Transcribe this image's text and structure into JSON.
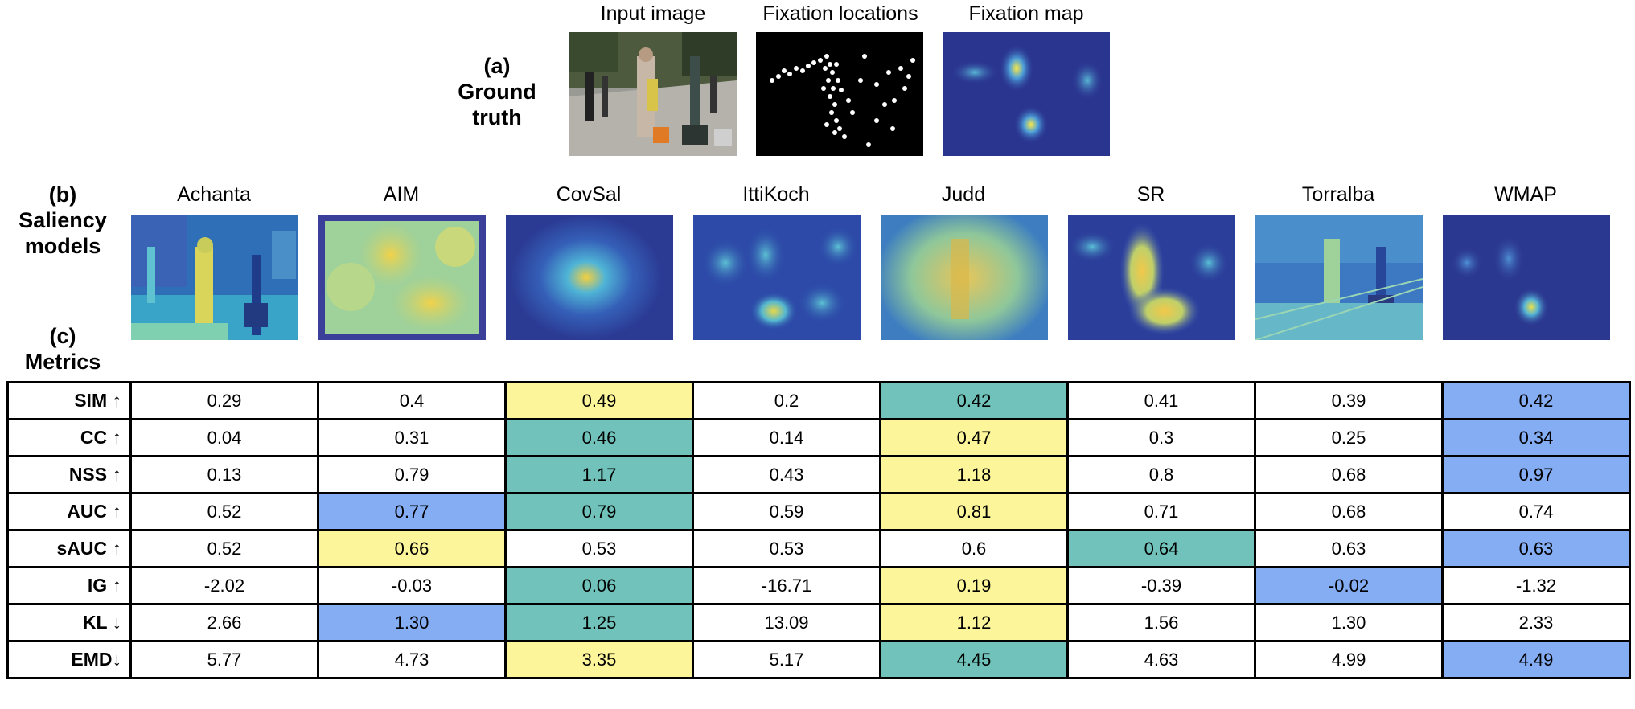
{
  "ground_truth": {
    "label_letter": "(a)",
    "label_line1": "Ground",
    "label_line2": "truth",
    "captions": [
      "Input image",
      "Fixation locations",
      "Fixation map"
    ]
  },
  "saliency_models": {
    "label_letter": "(b)",
    "label_line1": "Saliency",
    "label_line2": "models",
    "names": [
      "Achanta",
      "AIM",
      "CovSal",
      "IttiKoch",
      "Judd",
      "SR",
      "Torralba",
      "WMAP"
    ]
  },
  "metrics_section": {
    "label_letter": "(c)",
    "label_line1": "Metrics"
  },
  "highlight_colors": {
    "yellow": "#fdf59a",
    "teal": "#70c2ba",
    "blue": "#85adf4"
  },
  "metrics_table": {
    "rows": [
      {
        "label": "SIM ↑",
        "values": [
          "0.29",
          "0.4",
          "0.49",
          "0.2",
          "0.42",
          "0.41",
          "0.39",
          "0.42"
        ],
        "highlights": [
          "",
          "",
          "yellow",
          "",
          "teal",
          "",
          "",
          "blue"
        ]
      },
      {
        "label": "CC ↑",
        "values": [
          "0.04",
          "0.31",
          "0.46",
          "0.14",
          "0.47",
          "0.3",
          "0.25",
          "0.34"
        ],
        "highlights": [
          "",
          "",
          "teal",
          "",
          "yellow",
          "",
          "",
          "blue"
        ]
      },
      {
        "label": "NSS ↑",
        "values": [
          "0.13",
          "0.79",
          "1.17",
          "0.43",
          "1.18",
          "0.8",
          "0.68",
          "0.97"
        ],
        "highlights": [
          "",
          "",
          "teal",
          "",
          "yellow",
          "",
          "",
          "blue"
        ]
      },
      {
        "label": "AUC ↑",
        "values": [
          "0.52",
          "0.77",
          "0.79",
          "0.59",
          "0.81",
          "0.71",
          "0.68",
          "0.74"
        ],
        "highlights": [
          "",
          "blue",
          "teal",
          "",
          "yellow",
          "",
          "",
          ""
        ]
      },
      {
        "label": "sAUC ↑",
        "values": [
          "0.52",
          "0.66",
          "0.53",
          "0.53",
          "0.6",
          "0.64",
          "0.63",
          "0.63"
        ],
        "highlights": [
          "",
          "yellow",
          "",
          "",
          "",
          "teal",
          "",
          "blue"
        ]
      },
      {
        "label": "IG ↑",
        "values": [
          "-2.02",
          "-0.03",
          "0.06",
          "-16.71",
          "0.19",
          "-0.39",
          "-0.02",
          "-1.32"
        ],
        "highlights": [
          "",
          "",
          "teal",
          "",
          "yellow",
          "",
          "blue",
          ""
        ]
      },
      {
        "label": "KL ↓",
        "values": [
          "2.66",
          "1.30",
          "1.25",
          "13.09",
          "1.12",
          "1.56",
          "1.30",
          "2.33"
        ],
        "highlights": [
          "",
          "blue",
          "teal",
          "",
          "yellow",
          "",
          "",
          ""
        ]
      },
      {
        "label": "EMD↓",
        "values": [
          "5.77",
          "4.73",
          "3.35",
          "5.17",
          "4.45",
          "4.63",
          "4.99",
          "4.49"
        ],
        "highlights": [
          "",
          "",
          "yellow",
          "",
          "teal",
          "",
          "",
          "blue"
        ]
      }
    ]
  }
}
